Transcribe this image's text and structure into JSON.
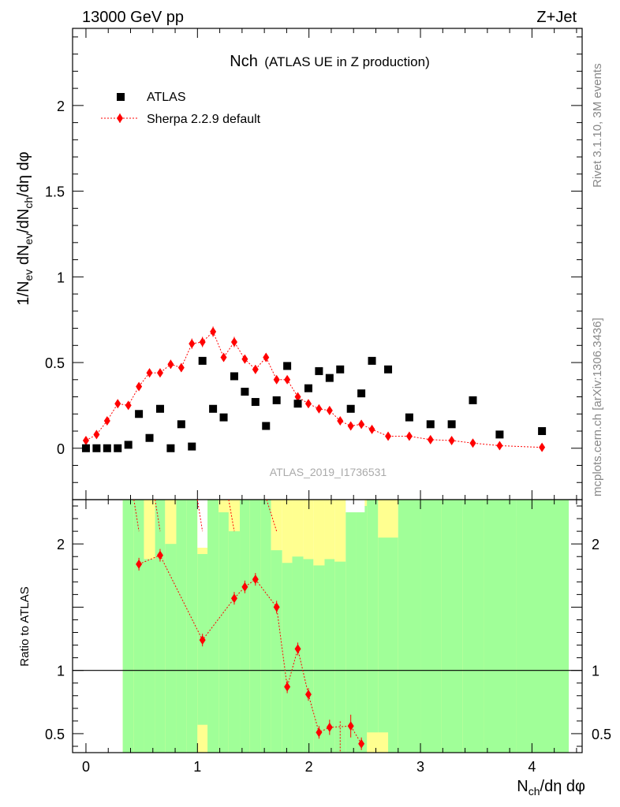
{
  "header": {
    "left": "13000 GeV pp",
    "right": "Z+Jet"
  },
  "side_labels": {
    "rivet": "Rivet 3.1.10,  3M events",
    "mcplots": "mcplots.cern.ch [arXiv:1306.3436]"
  },
  "chart_data": [
    {
      "type": "scatter",
      "title_main": "Nch",
      "title_sub": "(ATLAS UE in Z production)",
      "analysis_id": "ATLAS_2019_I1736531",
      "ylabel": "1/N_ev dN_ev/dN_ch/dη dφ",
      "ylim": [
        -0.3,
        2.45
      ],
      "xlim": [
        -0.12,
        4.45
      ],
      "yticks": [
        0,
        0.5,
        1,
        1.5,
        2
      ],
      "ytick_labels": [
        "0",
        "0.5",
        "1",
        "1.5",
        "2"
      ],
      "legend_position": "top-left",
      "colors": {
        "atlas": "#000000",
        "sherpa": "#ff0000"
      },
      "series": [
        {
          "name": "ATLAS",
          "marker": "square",
          "x": [
            0.0,
            0.095,
            0.19,
            0.285,
            0.38,
            0.475,
            0.57,
            0.665,
            0.76,
            0.855,
            0.95,
            1.045,
            1.14,
            1.235,
            1.33,
            1.425,
            1.52,
            1.615,
            1.71,
            1.805,
            1.9,
            1.995,
            2.09,
            2.185,
            2.28,
            2.375,
            2.47,
            2.565,
            2.71,
            2.9,
            3.09,
            3.28,
            3.47,
            3.71,
            4.09
          ],
          "y": [
            0.0,
            0.0,
            0.0,
            0.0,
            0.02,
            0.2,
            0.06,
            0.23,
            0.0,
            0.14,
            0.01,
            0.51,
            0.23,
            0.18,
            0.42,
            0.33,
            0.27,
            0.13,
            0.28,
            0.48,
            0.26,
            0.35,
            0.45,
            0.41,
            0.46,
            0.23,
            0.32,
            0.51,
            0.46,
            0.18,
            0.14,
            0.14,
            0.28,
            0.08,
            0.1
          ]
        },
        {
          "name": "Sherpa 2.2.9 default",
          "marker": "diamond",
          "x": [
            0.0,
            0.095,
            0.19,
            0.285,
            0.38,
            0.475,
            0.57,
            0.665,
            0.76,
            0.855,
            0.95,
            1.045,
            1.14,
            1.235,
            1.33,
            1.425,
            1.52,
            1.615,
            1.71,
            1.805,
            1.9,
            1.995,
            2.09,
            2.185,
            2.28,
            2.375,
            2.47,
            2.565,
            2.71,
            2.9,
            3.09,
            3.28,
            3.47,
            3.71,
            4.09
          ],
          "y": [
            0.045,
            0.08,
            0.16,
            0.26,
            0.25,
            0.36,
            0.44,
            0.44,
            0.49,
            0.47,
            0.61,
            0.62,
            0.68,
            0.53,
            0.62,
            0.52,
            0.46,
            0.53,
            0.4,
            0.4,
            0.3,
            0.26,
            0.23,
            0.22,
            0.16,
            0.13,
            0.14,
            0.11,
            0.07,
            0.07,
            0.05,
            0.045,
            0.03,
            0.015,
            0.005
          ],
          "yerr": [
            0.01,
            0.01,
            0.015,
            0.02,
            0.02,
            0.02,
            0.025,
            0.025,
            0.025,
            0.025,
            0.03,
            0.03,
            0.03,
            0.025,
            0.03,
            0.025,
            0.025,
            0.025,
            0.02,
            0.02,
            0.02,
            0.02,
            0.015,
            0.015,
            0.015,
            0.015,
            0.015,
            0.01,
            0.01,
            0.01,
            0.008,
            0.008,
            0.006,
            0.005,
            0.004
          ]
        }
      ]
    },
    {
      "type": "scatter",
      "panel": "ratio",
      "ylabel": "Ratio to ATLAS",
      "xlabel": "N_ch/dη dφ",
      "ylim": [
        0.35,
        2.35
      ],
      "xlim": [
        -0.12,
        4.45
      ],
      "xticks": [
        0,
        1,
        2,
        3,
        4
      ],
      "xtick_labels": [
        "0",
        "1",
        "2",
        "3",
        "4"
      ],
      "yticks": [
        0.5,
        1,
        2
      ],
      "ytick_labels": [
        "0.5",
        "1",
        "2"
      ],
      "reference_line": 1,
      "colors": {
        "band_1sigma": "#a0ff98",
        "band_2sigma": "#ffff90",
        "ratio": "#ff0000",
        "reference": "#000000"
      },
      "bands": {
        "x_edges": [
          0.33,
          0.43,
          0.52,
          0.62,
          0.71,
          0.81,
          0.9,
          1.0,
          1.09,
          1.19,
          1.28,
          1.38,
          1.47,
          1.57,
          1.66,
          1.76,
          1.85,
          1.95,
          2.04,
          2.14,
          2.23,
          2.33,
          2.42,
          2.52,
          2.62,
          2.8,
          3.0,
          3.19,
          3.38,
          3.57,
          3.86,
          4.33
        ],
        "green_upper": [
          2.35,
          2.35,
          1.88,
          2.35,
          2.0,
          2.35,
          2.35,
          1.92,
          2.35,
          2.25,
          2.1,
          2.35,
          2.35,
          2.35,
          1.95,
          1.85,
          1.9,
          1.88,
          1.83,
          1.88,
          1.86,
          2.35,
          2.3,
          2.35,
          2.05,
          2.35,
          2.35,
          2.35,
          2.35,
          2.35,
          2.35
        ],
        "yellow_upper": [
          2.35,
          2.35,
          2.35,
          2.35,
          2.35,
          2.35,
          2.35,
          2.35,
          2.35,
          2.35,
          2.35,
          2.35,
          2.35,
          2.35,
          2.35,
          2.35,
          2.35,
          2.35,
          2.35,
          2.35,
          2.35,
          2.35,
          2.35,
          2.35,
          2.35,
          2.35,
          2.35,
          2.35,
          2.22,
          2.35,
          2.22
        ],
        "white_gaps": [
          [
            2.33,
            2.5,
            2.35,
            2.25
          ],
          [
            1.0,
            1.09,
            2.35,
            1.97
          ]
        ]
      },
      "series": [
        {
          "name": "Sherpa 2.2.9 default / ATLAS",
          "x": [
            0.475,
            0.665,
            1.045,
            1.33,
            1.425,
            1.52,
            1.71,
            1.805,
            1.9,
            1.995,
            2.09,
            2.185,
            2.375,
            2.47
          ],
          "y": [
            1.84,
            1.91,
            1.24,
            1.57,
            1.66,
            1.72,
            1.5,
            0.87,
            1.17,
            0.81,
            0.51,
            0.55,
            0.56,
            0.42
          ],
          "yerr": [
            0.05,
            0.05,
            0.05,
            0.05,
            0.05,
            0.05,
            0.05,
            0.05,
            0.05,
            0.05,
            0.05,
            0.06,
            0.09,
            0.05
          ]
        }
      ]
    }
  ]
}
